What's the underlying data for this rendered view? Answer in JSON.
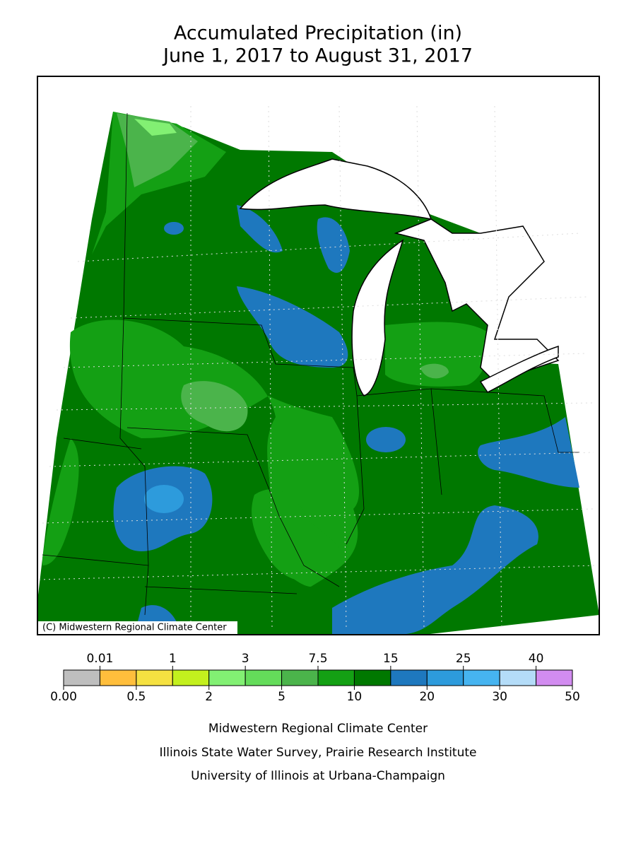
{
  "title": [
    "Accumulated Precipitation (in)",
    "June 1, 2017 to August 31, 2017"
  ],
  "copyright": "(C) Midwestern Regional Climate Center",
  "legend": {
    "boundaries": [
      {
        "value": 0,
        "label": "0.00"
      },
      0.01,
      0.5,
      1,
      2,
      3,
      5,
      7.5,
      10,
      15,
      20,
      25,
      30,
      40,
      50
    ],
    "colors": [
      "#bebebe",
      "#ffbe3c",
      "#f5e141",
      "#c3f01e",
      "#82f073",
      "#64dc5a",
      "#4bb44b",
      "#14a014",
      "#007800",
      "#1e78be",
      "#2d9bdc",
      "#46b4f0",
      "#b4dcf8",
      "#d28cf0"
    ]
  },
  "footer": [
    "Midwestern Regional Climate Center",
    "Illinois State Water Survey, Prairie Research Institute",
    "University of Illinois at Urbana-Champaign"
  ]
}
